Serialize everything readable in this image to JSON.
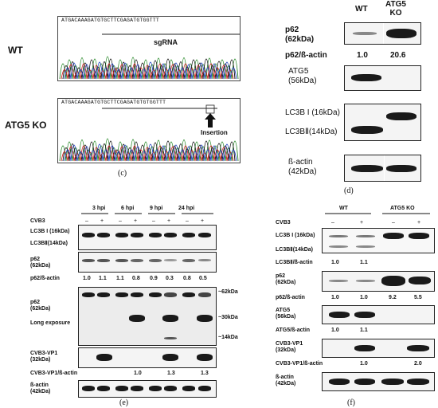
{
  "panel_c": {
    "letter": "(c)",
    "wt_label": "WT",
    "ko_label": "ATG5 KO",
    "wt_sequence": "ATGACAAAGATGTGCTTCGAGATGTGGTTT",
    "ko_sequence": "ATGACAAAGATGTGCTTCGAGATGTGTGGTTT",
    "sgrna_label": "sgRNA",
    "insertion_label": "Insertion"
  },
  "panel_d": {
    "letter": "(d)",
    "col_wt": "WT",
    "col_ko": "ATG5\nKO",
    "p62": "p62\n(62kDa)",
    "ratio_label": "p62/ß-actin",
    "ratio_wt": "1.0",
    "ratio_ko": "20.6",
    "atg5": "ATG5\n(56kDa)",
    "lc3b1": "LC3B I (16kDa)",
    "lc3b2": "LC3BⅡ(14kDa)",
    "actin": "ß-actin\n(42kDa)"
  },
  "panel_e": {
    "letter": "(e)",
    "times": [
      "3 hpi",
      "6 hpi",
      "9 hpi",
      "24 hpi"
    ],
    "cvb3_label": "CVB3",
    "signs": [
      "–",
      "+",
      "–",
      "+",
      "–",
      "+",
      "–",
      "+"
    ],
    "lc3b1": "LC3B I (16kDa)",
    "lc3b2": "LC3BⅡ(14kDa)",
    "p62": "p62\n(62kDa)",
    "p62_ratio_label": "p62/ß-actin",
    "p62_ratios": [
      "1.0",
      "1.1",
      "1.1",
      "0.8",
      "0.9",
      "0.3",
      "0.8",
      "0.5"
    ],
    "p62_long": "p62\n(62kDa)",
    "long_exposure": "Long exposure",
    "mk62": "~62kDa",
    "mk30": "~30kDa",
    "mk14": "~14kDa",
    "vp1": "CVB3-VP1\n(32kDa)",
    "vp1_ratio_label": "CVB3-VP1/ß-actin",
    "vp1_ratios": [
      "1.0",
      "1.3",
      "1.3"
    ],
    "actin": "ß-actin\n(42kDa)"
  },
  "panel_f": {
    "letter": "(f)",
    "col_wt": "WT",
    "col_ko": "ATG5 KO",
    "cvb3_label": "CVB3",
    "signs": [
      "–",
      "+",
      "–",
      "+"
    ],
    "lc3b1": "LC3B I (16kDa)",
    "lc3b2": "LC3BⅡ(14kDa)",
    "lc3_ratio_label": "LC3BⅡ/ß-actin",
    "lc3_ratios": [
      "1.0",
      "1.1"
    ],
    "p62": "p62\n(62kDa)",
    "p62_ratio_label": "p62/ß-actin",
    "p62_ratios": [
      "1.0",
      "1.0",
      "9.2",
      "5.5"
    ],
    "atg5": "ATG5\n(56kDa)",
    "atg5_ratio_label": "ATG5/ß-actin",
    "atg5_ratios": [
      "1.0",
      "1.1"
    ],
    "vp1": "CVB3-VP1\n(32kDa)",
    "vp1_ratio_label": "CVB3-VP1/ß-actin",
    "vp1_ratios": [
      "1.0",
      "2.0"
    ],
    "actin": "ß-actin\n(42kDa)"
  }
}
